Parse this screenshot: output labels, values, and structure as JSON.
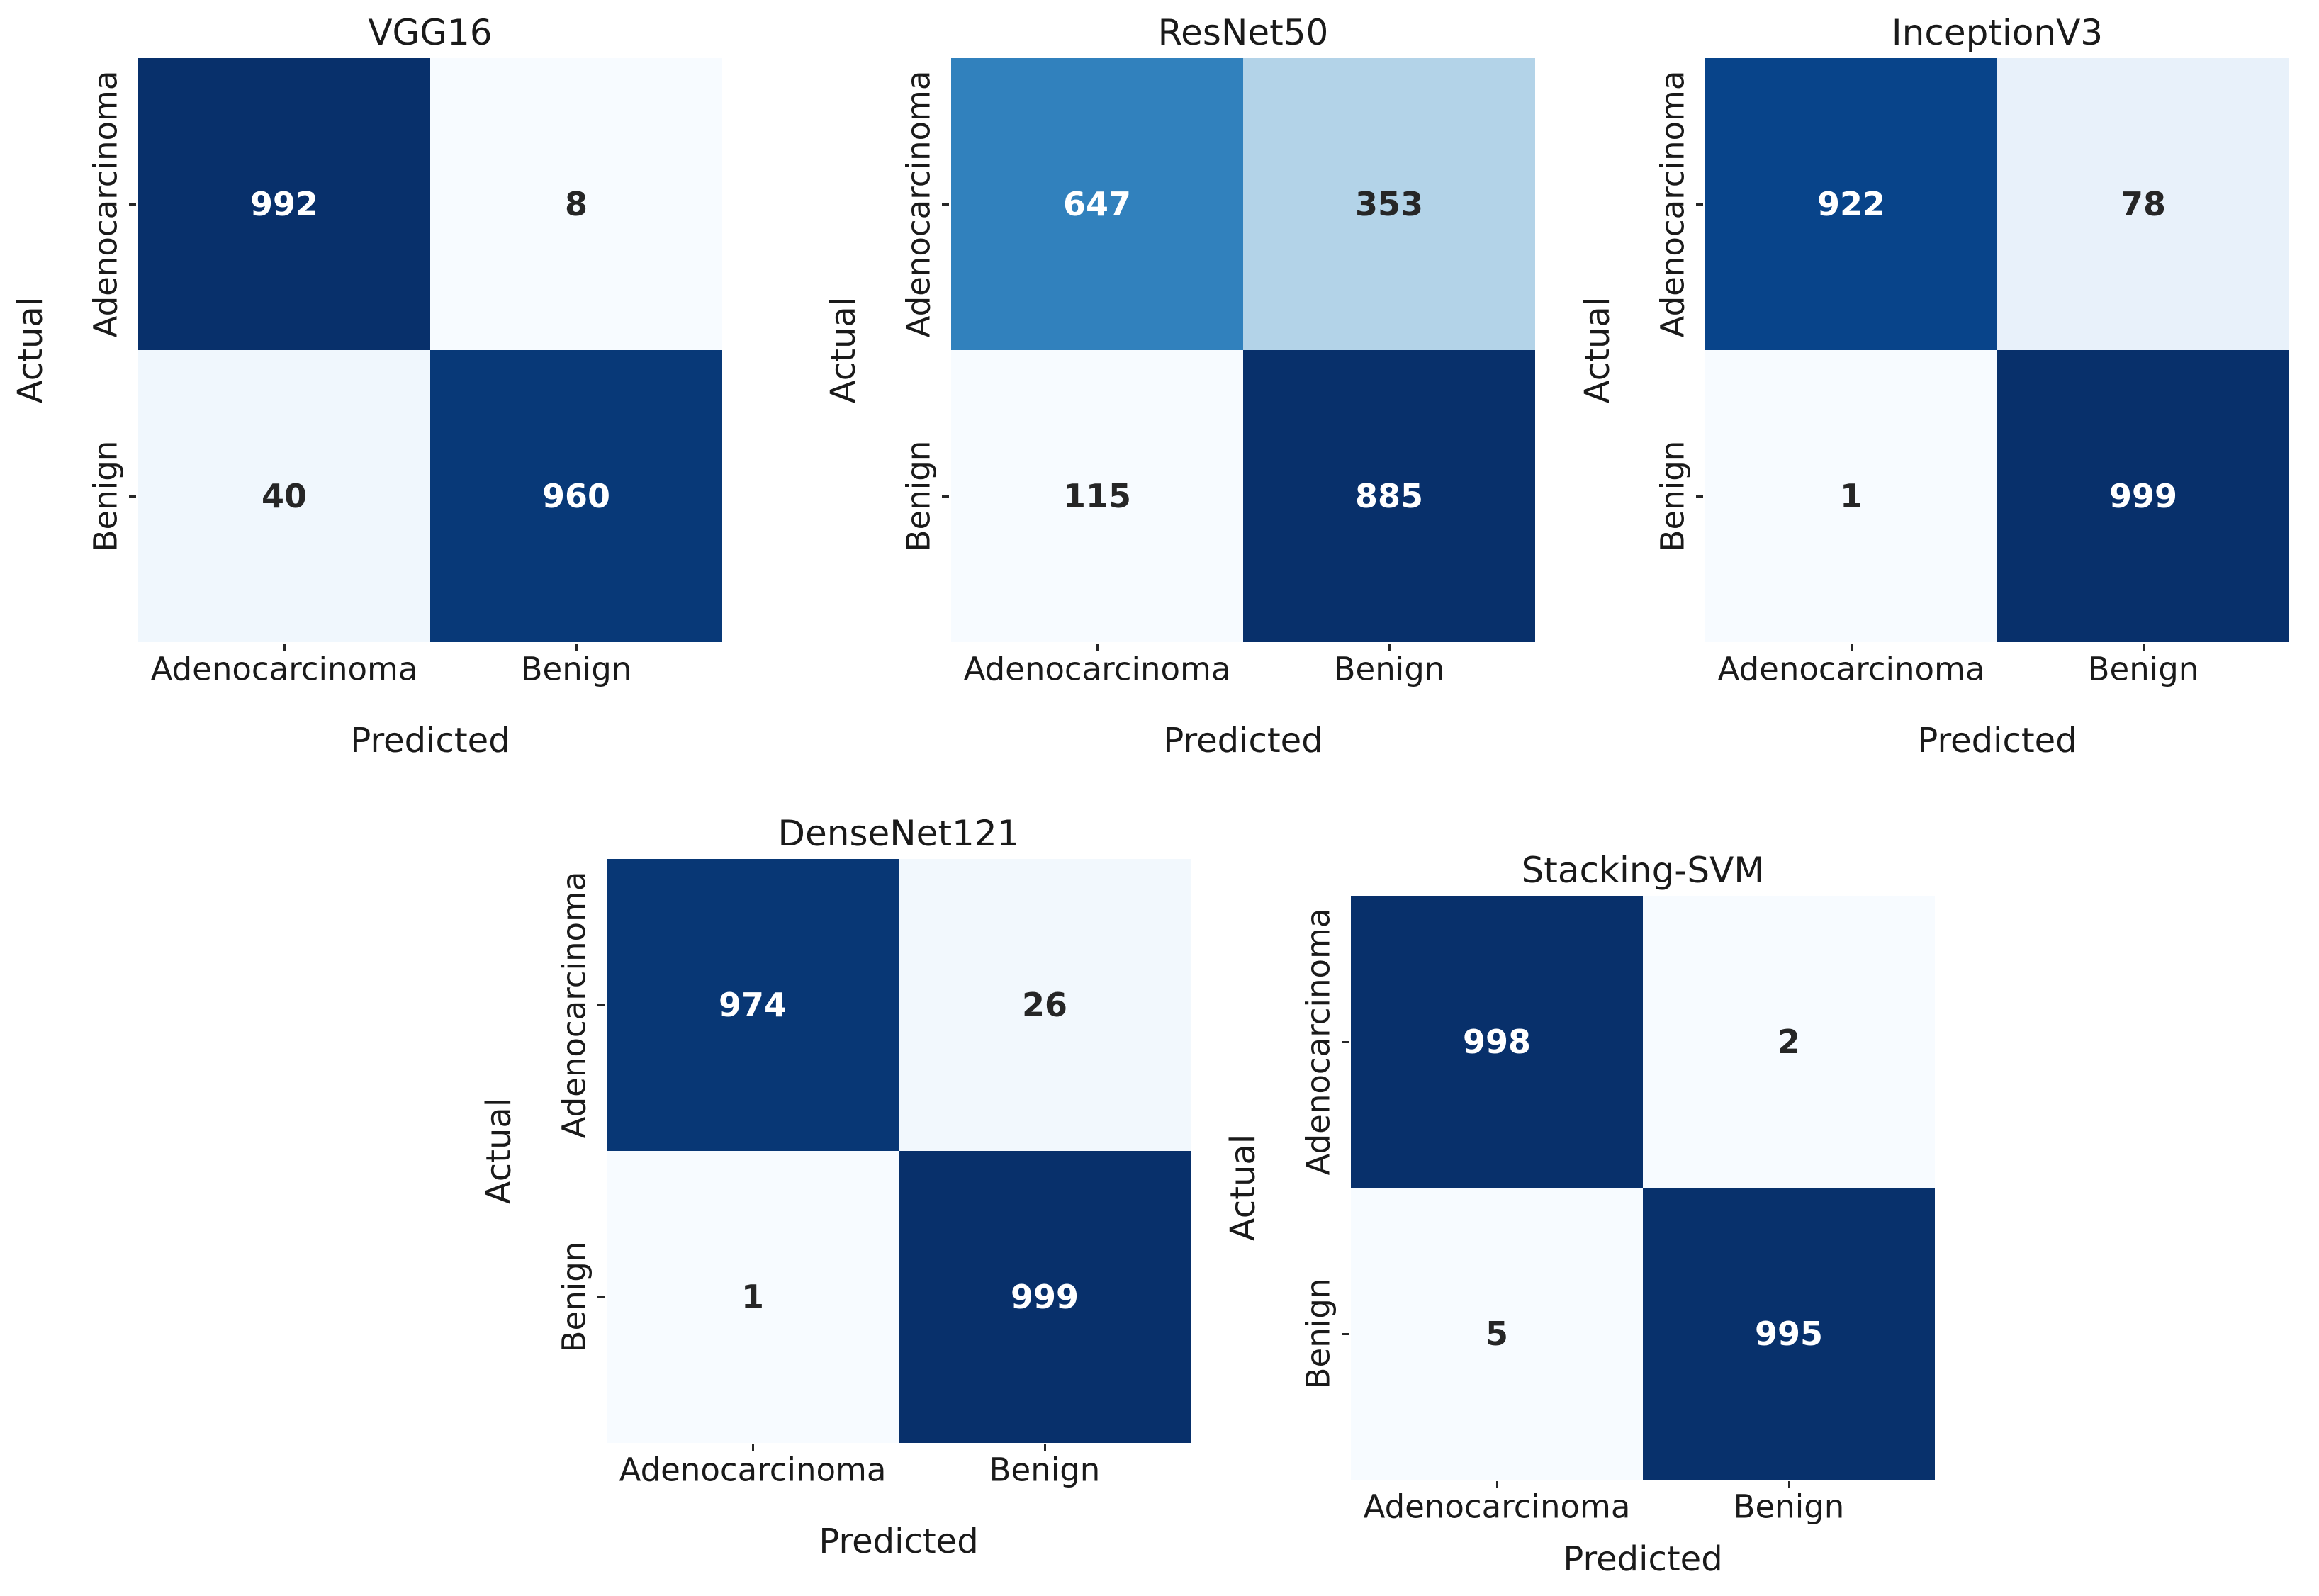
{
  "figure": {
    "background": "#ffffff",
    "text_color": "#1a1a1a",
    "annotation_dark_color": "#262626",
    "annotation_light_color": "#ffffff",
    "colormap": "Blues"
  },
  "chart_data": [
    {
      "type": "heatmap",
      "title": "VGG16",
      "xlabel": "Predicted",
      "ylabel": "Actual",
      "x_categories": [
        "Adenocarcinoma",
        "Benign"
      ],
      "y_categories": [
        "Adenocarcinoma",
        "Benign"
      ],
      "values": [
        [
          992,
          8
        ],
        [
          40,
          960
        ]
      ],
      "vmin": 8,
      "vmax": 992,
      "cell_colors": [
        [
          "#08306b",
          "#f7fbff"
        ],
        [
          "#f0f7fd",
          "#083978"
        ]
      ],
      "text_colors": [
        [
          "#ffffff",
          "#262626"
        ],
        [
          "#262626",
          "#ffffff"
        ]
      ]
    },
    {
      "type": "heatmap",
      "title": "ResNet50",
      "xlabel": "Predicted",
      "ylabel": "Actual",
      "x_categories": [
        "Adenocarcinoma",
        "Benign"
      ],
      "y_categories": [
        "Adenocarcinoma",
        "Benign"
      ],
      "values": [
        [
          647,
          353
        ],
        [
          115,
          885
        ]
      ],
      "vmin": 115,
      "vmax": 885,
      "cell_colors": [
        [
          "#3181bd",
          "#b3d3e8"
        ],
        [
          "#f7fbff",
          "#08306b"
        ]
      ],
      "text_colors": [
        [
          "#ffffff",
          "#262626"
        ],
        [
          "#262626",
          "#ffffff"
        ]
      ]
    },
    {
      "type": "heatmap",
      "title": "InceptionV3",
      "xlabel": "Predicted",
      "ylabel": "Actual",
      "x_categories": [
        "Adenocarcinoma",
        "Benign"
      ],
      "y_categories": [
        "Adenocarcinoma",
        "Benign"
      ],
      "values": [
        [
          922,
          78
        ],
        [
          1,
          999
        ]
      ],
      "vmin": 1,
      "vmax": 999,
      "cell_colors": [
        [
          "#08448a",
          "#e8f1fa"
        ],
        [
          "#f7fbff",
          "#08306b"
        ]
      ],
      "text_colors": [
        [
          "#ffffff",
          "#262626"
        ],
        [
          "#262626",
          "#ffffff"
        ]
      ]
    },
    {
      "type": "heatmap",
      "title": "DenseNet121",
      "xlabel": "Predicted",
      "ylabel": "Actual",
      "x_categories": [
        "Adenocarcinoma",
        "Benign"
      ],
      "y_categories": [
        "Adenocarcinoma",
        "Benign"
      ],
      "values": [
        [
          974,
          26
        ],
        [
          1,
          999
        ]
      ],
      "vmin": 1,
      "vmax": 999,
      "cell_colors": [
        [
          "#083775",
          "#f2f8fd"
        ],
        [
          "#f7fbff",
          "#08306b"
        ]
      ],
      "text_colors": [
        [
          "#ffffff",
          "#262626"
        ],
        [
          "#262626",
          "#ffffff"
        ]
      ]
    },
    {
      "type": "heatmap",
      "title": "Stacking-SVM",
      "xlabel": "Predicted",
      "ylabel": "Actual",
      "x_categories": [
        "Adenocarcinoma",
        "Benign"
      ],
      "y_categories": [
        "Adenocarcinoma",
        "Benign"
      ],
      "values": [
        [
          998,
          2
        ],
        [
          5,
          995
        ]
      ],
      "vmin": 2,
      "vmax": 998,
      "cell_colors": [
        [
          "#08306b",
          "#f7fbff"
        ],
        [
          "#f7fbff",
          "#08316c"
        ]
      ],
      "text_colors": [
        [
          "#ffffff",
          "#262626"
        ],
        [
          "#262626",
          "#ffffff"
        ]
      ]
    }
  ]
}
